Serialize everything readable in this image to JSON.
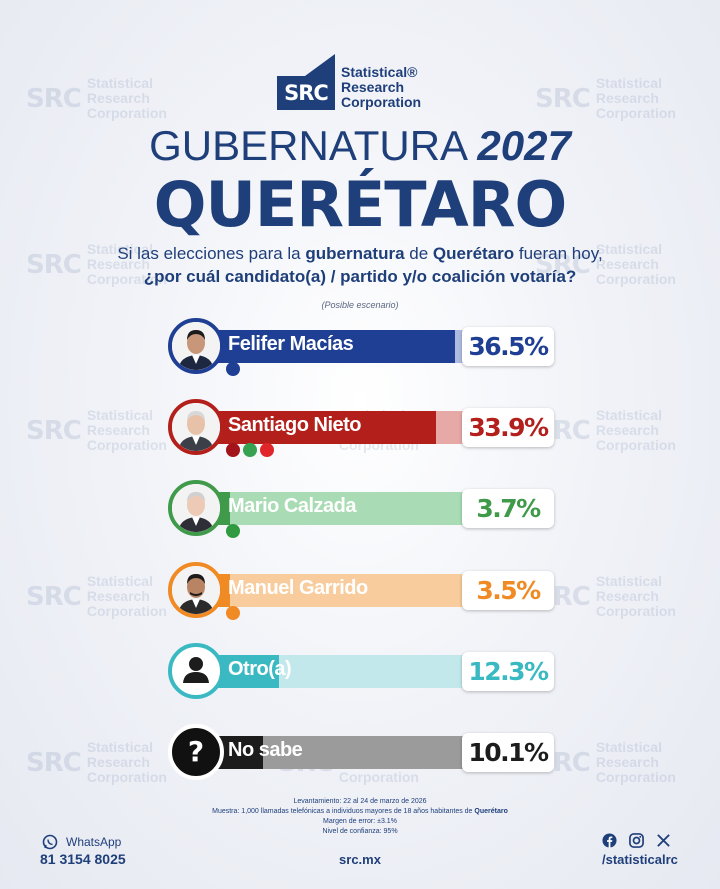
{
  "brand": {
    "logo_text": "SRC",
    "name_lines": [
      "Statistical®",
      "Research",
      "Corporation"
    ]
  },
  "title": {
    "line1_main": "GUBERNATURA",
    "line1_year": "2027",
    "line2": "QUERÉTARO"
  },
  "question": {
    "line1_a": "Si las elecciones para la ",
    "line1_b": "gubernatura",
    "line1_c": " de ",
    "line1_d": "Querétaro",
    "line1_e": " fueran hoy,",
    "line2": "¿por cuál candidato(a) / partido y/o coalición votaría?",
    "note": "(Posible escenario)"
  },
  "chart_data": {
    "type": "bar",
    "orientation": "horizontal",
    "title": "GUBERNATURA 2027 QUERÉTARO",
    "categories": [
      "Felifer Macías",
      "Santiago Nieto",
      "Mario Calzada",
      "Manuel Garrido",
      "Otro(a)",
      "No sabe"
    ],
    "values": [
      36.5,
      33.9,
      3.7,
      3.5,
      12.3,
      10.1
    ],
    "labels": [
      "36.5%",
      "33.9%",
      "3.7%",
      "3.5%",
      "12.3%",
      "10.1%"
    ],
    "parties": [
      [
        "PAN"
      ],
      [
        "MORENA",
        "PVEM",
        "PT"
      ],
      [
        "PRI"
      ],
      [
        "MC"
      ],
      [],
      []
    ],
    "colors": [
      "#1f3f94",
      "#b3201c",
      "#3f9a4a",
      "#f08a24",
      "#3bb9c3",
      "#1c1c1c"
    ],
    "light_colors": [
      "#aebbe0",
      "#e7a9a6",
      "#a9dcb4",
      "#f8cc9c",
      "#c2e8ec",
      "#9b9b9b"
    ],
    "pct_colors": [
      "#1f3f94",
      "#b3201c",
      "#3f9a4a",
      "#f08a24",
      "#3bb9c3",
      "#1c1c1c"
    ],
    "xlim": [
      0,
      40
    ]
  },
  "watermark": {
    "logo": "SRC",
    "lines": [
      "Statistical",
      "Research",
      "Corporation"
    ]
  },
  "footer": {
    "meta_1": "Levantamiento: 22 al 24 de marzo de 2026",
    "meta_2a": "Muestra: 1,000 llamadas telefónicas a individuos mayores de 18 años habitantes de ",
    "meta_2b": "Querétaro",
    "meta_3": "Margen de error: ±3.1%",
    "meta_4": "Nivel de confianza: 95%",
    "whatsapp_label": "WhatsApp",
    "whatsapp_number": "81 3154 8025",
    "site": "src.mx",
    "handle": "/statisticalrc"
  }
}
